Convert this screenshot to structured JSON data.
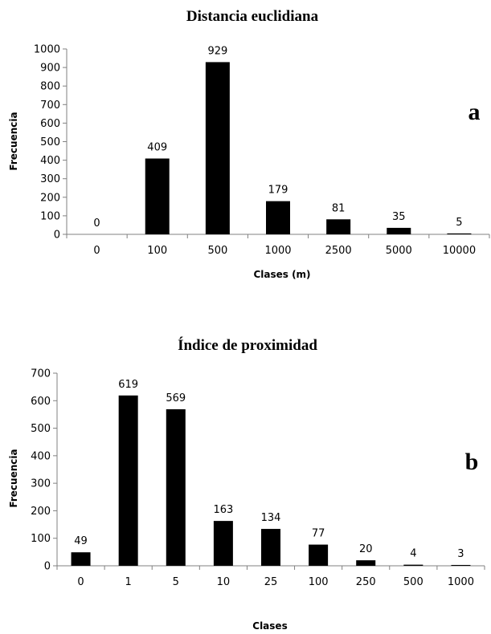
{
  "chart_data": [
    {
      "type": "bar",
      "title": "Distancia euclidiana",
      "panel_label": "a",
      "xlabel": "Clases (m)",
      "ylabel": "Frecuencia",
      "categories": [
        "0",
        "100",
        "500",
        "1000",
        "2500",
        "5000",
        "10000"
      ],
      "values": [
        0,
        409,
        929,
        179,
        81,
        35,
        5
      ],
      "data_labels": [
        "0",
        "409",
        "929",
        "179",
        "81",
        "35",
        "5"
      ],
      "ylim": [
        0,
        1000
      ],
      "yticks": [
        "0",
        "100",
        "200",
        "300",
        "400",
        "500",
        "600",
        "700",
        "800",
        "900",
        "1000"
      ],
      "grid": false,
      "legend": "none",
      "bar_color": "#000000"
    },
    {
      "type": "bar",
      "title": "Índice de proximidad",
      "panel_label": "b",
      "xlabel": "Clases",
      "ylabel": "Frecuencia",
      "categories": [
        "0",
        "1",
        "5",
        "10",
        "25",
        "100",
        "250",
        "500",
        "1000"
      ],
      "values": [
        49,
        619,
        569,
        163,
        134,
        77,
        20,
        4,
        3
      ],
      "data_labels": [
        "49",
        "619",
        "569",
        "163",
        "134",
        "77",
        "20",
        "4",
        "3"
      ],
      "ylim": [
        0,
        700
      ],
      "yticks": [
        "0",
        "100",
        "200",
        "300",
        "400",
        "500",
        "600",
        "700"
      ],
      "grid": false,
      "legend": "none",
      "bar_color": "#000000"
    }
  ]
}
